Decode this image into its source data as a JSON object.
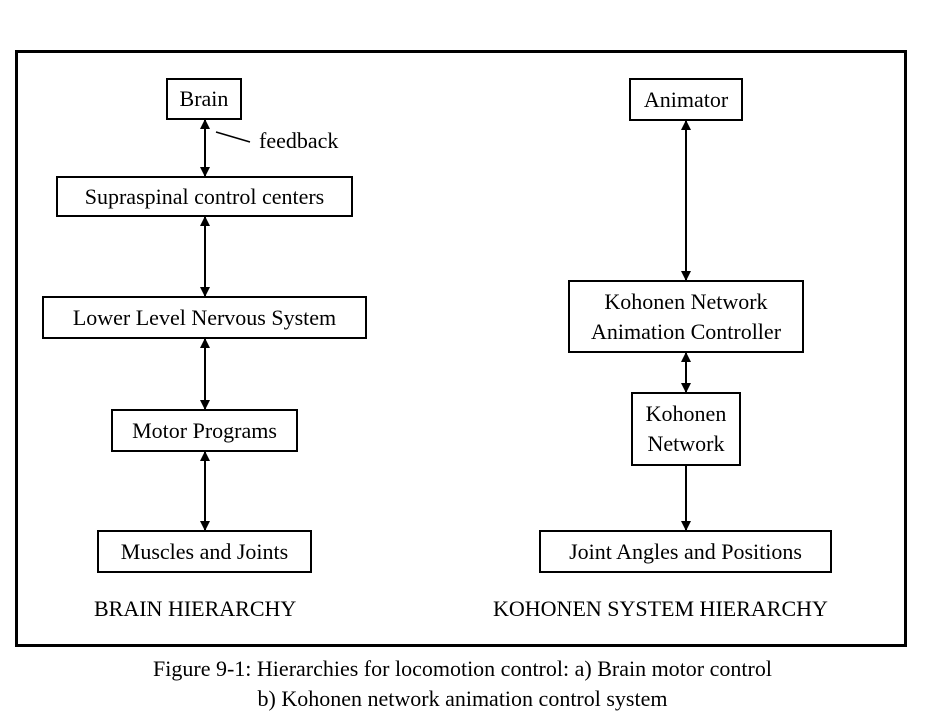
{
  "left": {
    "brain": "Brain",
    "feedback": "feedback",
    "supraspinal": "Supraspinal control centers",
    "lower_level": "Lower Level Nervous System",
    "motor_programs": "Motor Programs",
    "muscles": "Muscles and Joints",
    "title": "BRAIN HIERARCHY"
  },
  "right": {
    "animator": "Animator",
    "controller_line1": "Kohonen Network",
    "controller_line2": "Animation Controller",
    "network_line1": "Kohonen",
    "network_line2": "Network",
    "joints": "Joint Angles and Positions",
    "title": "KOHONEN SYSTEM HIERARCHY"
  },
  "caption": {
    "line1": "Figure 9-1: Hierarchies for locomotion control: a) Brain motor control",
    "line2": "b) Kohonen network animation control system"
  }
}
